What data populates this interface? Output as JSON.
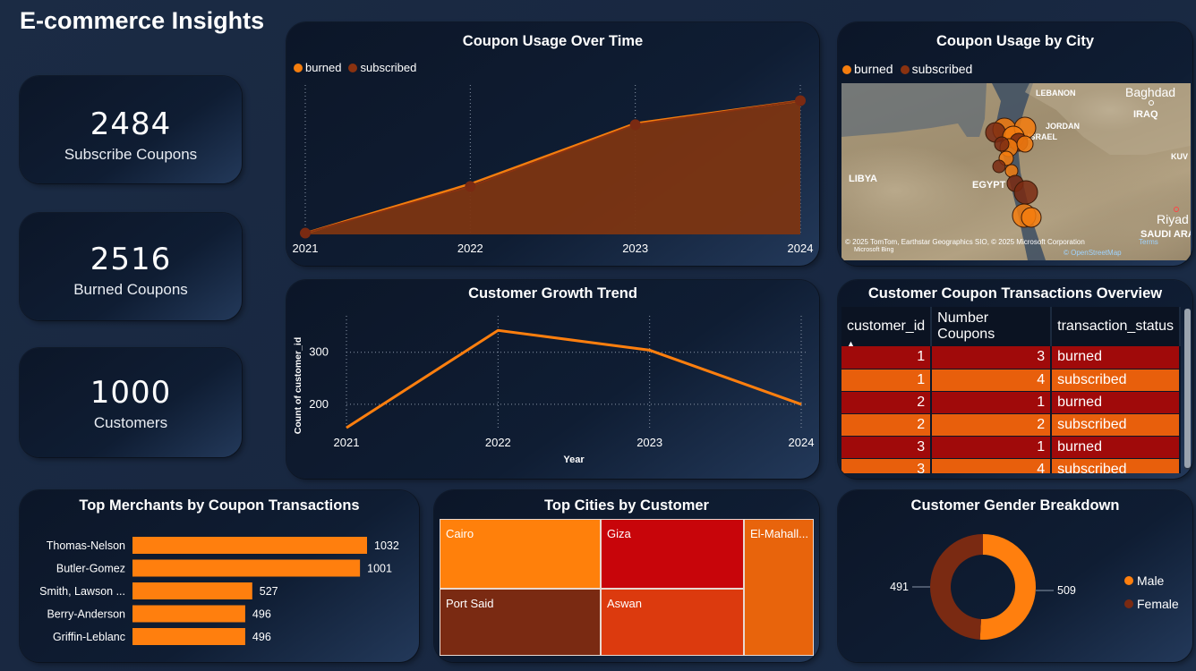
{
  "dashboard": {
    "title": "E-commerce Insights"
  },
  "kpis": [
    {
      "value": "2484",
      "label": "Subscribe Coupons"
    },
    {
      "value": "2516",
      "label": "Burned Coupons"
    },
    {
      "value": "1000",
      "label": "Customers"
    }
  ],
  "colors": {
    "burned": "#f47d0e",
    "subscribed": "#7a2a12",
    "male": "#ff7f0e",
    "female": "#7a2a12",
    "row_burned": "#a00a0a",
    "row_subscribed": "#e85f0c"
  },
  "coupon_usage": {
    "title": "Coupon Usage Over Time",
    "legend": [
      "burned",
      "subscribed"
    ]
  },
  "city_map": {
    "title": "Coupon Usage by City",
    "legend": [
      "burned",
      "subscribed"
    ],
    "labels": [
      "LEBANON",
      "Baghdad",
      "IRAQ",
      "JORDAN",
      "ISRAEL",
      "KUV",
      "LIBYA",
      "EGYPT",
      "Riyad",
      "SAUDI ARA"
    ],
    "attribution": "© 2025 TomTom, Earthstar Geographics SIO, © 2025 Microsoft Corporation",
    "terms": "Terms",
    "osm": "© OpenStreetMap",
    "bing": "Microsoft Bing"
  },
  "growth": {
    "title": "Customer Growth Trend",
    "xlabel": "Year",
    "ylabel": "Count of customer_id"
  },
  "transactions": {
    "title": "Customer Coupon Transactions Overview",
    "columns": [
      "customer_id",
      "Number Coupons",
      "transaction_status"
    ],
    "rows": [
      {
        "customer_id": "1",
        "coupons": "3",
        "status": "burned"
      },
      {
        "customer_id": "1",
        "coupons": "4",
        "status": "subscribed"
      },
      {
        "customer_id": "2",
        "coupons": "1",
        "status": "burned"
      },
      {
        "customer_id": "2",
        "coupons": "2",
        "status": "subscribed"
      },
      {
        "customer_id": "3",
        "coupons": "1",
        "status": "burned"
      },
      {
        "customer_id": "3",
        "coupons": "4",
        "status": "subscribed"
      }
    ]
  },
  "merchants": {
    "title": "Top Merchants by Coupon Transactions"
  },
  "cities": {
    "title": "Top Cities by Customer",
    "cells": [
      {
        "label": "Cairo",
        "color": "#ff800b"
      },
      {
        "label": "Giza",
        "color": "#c8050a"
      },
      {
        "label": "El-Mahall...",
        "color": "#e8640c"
      },
      {
        "label": "Port Said",
        "color": "#7a2a12"
      },
      {
        "label": "Aswan",
        "color": "#dc3a0e"
      }
    ]
  },
  "gender": {
    "title": "Customer Gender Breakdown",
    "legend": [
      "Male",
      "Female"
    ]
  },
  "chart_data": [
    {
      "type": "area",
      "title": "Coupon Usage Over Time",
      "x": [
        "2021",
        "2022",
        "2023",
        "2024"
      ],
      "series": [
        {
          "name": "burned",
          "values": [
            14,
            548,
            1204,
            1450
          ]
        },
        {
          "name": "subscribed",
          "values": [
            14,
            520,
            1190,
            1450
          ]
        }
      ],
      "ylim": [
        0,
        1620
      ]
    },
    {
      "type": "line",
      "title": "Customer Growth Trend",
      "x": [
        "2021",
        "2022",
        "2023",
        "2024"
      ],
      "values": [
        155,
        342,
        304,
        200
      ],
      "xlabel": "Year",
      "ylabel": "Count of customer_id",
      "yticks": [
        200,
        300
      ],
      "ylim": [
        150,
        370
      ]
    },
    {
      "type": "bar",
      "title": "Top Merchants by Coupon Transactions",
      "categories": [
        "Thomas-Nelson",
        "Butler-Gomez",
        "Smith, Lawson ...",
        "Berry-Anderson",
        "Griffin-Leblanc"
      ],
      "values": [
        1032,
        1001,
        527,
        496,
        496
      ]
    },
    {
      "type": "pie",
      "title": "Customer Gender Breakdown",
      "categories": [
        "Male",
        "Female"
      ],
      "values": [
        509,
        491
      ]
    }
  ]
}
